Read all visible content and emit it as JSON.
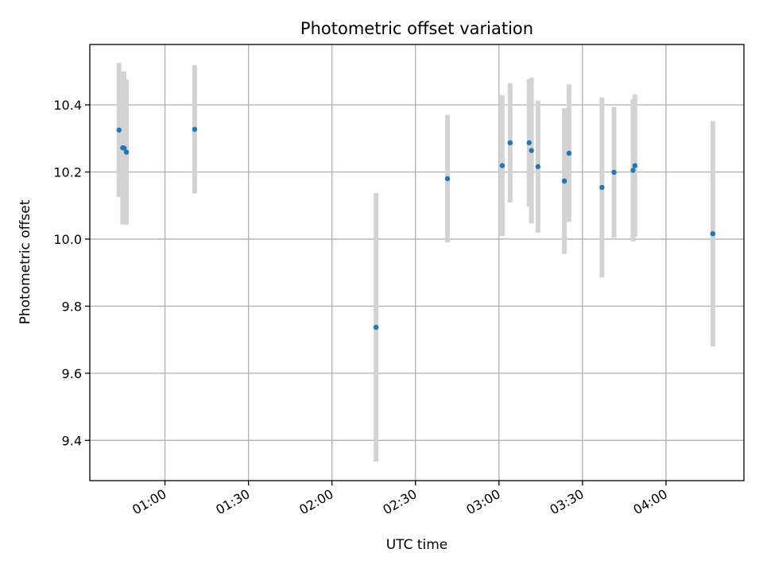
{
  "chart_data": {
    "type": "scatter",
    "title": "Photometric offset variation",
    "xlabel": "UTC time",
    "ylabel": "Photometric offset",
    "xlim": [
      "00:33",
      "04:28"
    ],
    "ylim": [
      9.28,
      10.58
    ],
    "grid": true,
    "x_ticks": [
      "01:00",
      "01:30",
      "02:00",
      "02:30",
      "03:00",
      "03:30",
      "04:00"
    ],
    "y_ticks": [
      9.4,
      9.6,
      9.8,
      10.0,
      10.2,
      10.4
    ],
    "colors": {
      "points": "#1f77b4",
      "errorbars": "#d3d3d3"
    },
    "points": [
      {
        "x": "00:43:30",
        "y": 10.325,
        "yerr": 0.2
      },
      {
        "x": "00:44:50",
        "y": 10.272,
        "yerr": 0.228
      },
      {
        "x": "00:45:20",
        "y": 10.271,
        "yerr": 0.228
      },
      {
        "x": "00:46:10",
        "y": 10.259,
        "yerr": 0.216
      },
      {
        "x": "01:10:40",
        "y": 10.327,
        "yerr": 0.191
      },
      {
        "x": "02:15:50",
        "y": 9.737,
        "yerr": 0.4
      },
      {
        "x": "02:41:30",
        "y": 10.18,
        "yerr": 0.19
      },
      {
        "x": "03:01:10",
        "y": 10.219,
        "yerr": 0.21
      },
      {
        "x": "03:04:00",
        "y": 10.287,
        "yerr": 0.178
      },
      {
        "x": "03:10:50",
        "y": 10.287,
        "yerr": 0.19
      },
      {
        "x": "03:11:40",
        "y": 10.264,
        "yerr": 0.217
      },
      {
        "x": "03:14:00",
        "y": 10.216,
        "yerr": 0.197
      },
      {
        "x": "03:23:30",
        "y": 10.173,
        "yerr": 0.217
      },
      {
        "x": "03:25:10",
        "y": 10.256,
        "yerr": 0.205
      },
      {
        "x": "03:37:00",
        "y": 10.154,
        "yerr": 0.268
      },
      {
        "x": "03:41:20",
        "y": 10.199,
        "yerr": 0.195
      },
      {
        "x": "03:48:10",
        "y": 10.205,
        "yerr": 0.212
      },
      {
        "x": "03:48:50",
        "y": 10.219,
        "yerr": 0.212
      },
      {
        "x": "04:16:50",
        "y": 10.016,
        "yerr": 0.336
      }
    ]
  }
}
